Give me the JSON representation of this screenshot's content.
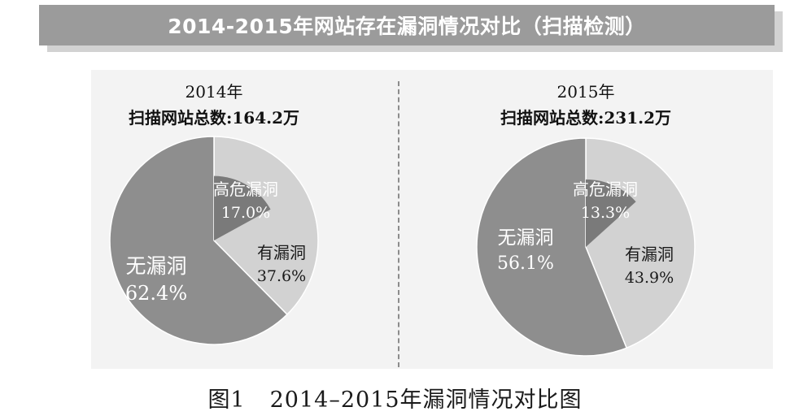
{
  "banner": {
    "title": "2014-2015年网站存在漏洞情况对比（扫描检测）"
  },
  "colors": {
    "no_vuln": "#8e8e8e",
    "high_risk": "#7a7a7a",
    "has_vuln": "#d2d2d2",
    "banner": "#9b9b9b"
  },
  "chart_data": [
    {
      "type": "pie",
      "title": "2014年",
      "subtitle": "扫描网站总数:164.2万",
      "slices": [
        {
          "label": "高危漏洞",
          "value": 17.0,
          "display": "17.0%",
          "color": "#7a7a7a",
          "exploded": true
        },
        {
          "label": "有漏洞",
          "value": 37.6,
          "display": "37.6%",
          "color": "#d2d2d2"
        },
        {
          "label": "无漏洞",
          "value": 62.4,
          "display": "62.4%",
          "color": "#8e8e8e"
        }
      ]
    },
    {
      "type": "pie",
      "title": "2015年",
      "subtitle": "扫描网站总数:231.2万",
      "slices": [
        {
          "label": "高危漏洞",
          "value": 13.3,
          "display": "13.3%",
          "color": "#7a7a7a",
          "exploded": true
        },
        {
          "label": "有漏洞",
          "value": 43.9,
          "display": "43.9%",
          "color": "#d2d2d2"
        },
        {
          "label": "无漏洞",
          "value": 56.1,
          "display": "56.1%",
          "color": "#8e8e8e"
        }
      ]
    }
  ],
  "caption": {
    "figure_no": "图1",
    "text": "2014–2015年漏洞情况对比图"
  }
}
